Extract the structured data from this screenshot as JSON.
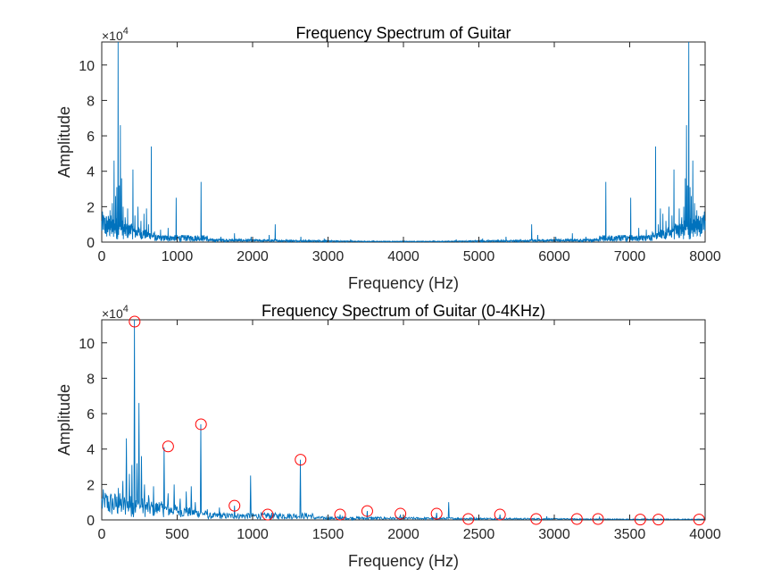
{
  "chart_data": [
    {
      "type": "line",
      "title": "Frequency Spectrum of Guitar",
      "xlabel": "Frequency (Hz)",
      "ylabel": "Amplitude",
      "y_exponent_base": "×10",
      "y_exponent_power": "4",
      "xlim": [
        0,
        8000
      ],
      "ylim": [
        0,
        11.3
      ],
      "y_multiplier": 10000,
      "xticks": [
        "0",
        "1000",
        "2000",
        "3000",
        "4000",
        "5000",
        "6000",
        "7000",
        "8000"
      ],
      "yticks": [
        "0",
        "2",
        "4",
        "6",
        "8",
        "10"
      ],
      "series_color": "#0072BD",
      "peaks": [
        {
          "x": 20,
          "y": 0.7
        },
        {
          "x": 45,
          "y": 0.5
        },
        {
          "x": 70,
          "y": 0.6
        },
        {
          "x": 95,
          "y": 0.4
        },
        {
          "x": 110,
          "y": 1.8
        },
        {
          "x": 125,
          "y": 0.8
        },
        {
          "x": 140,
          "y": 2.2
        },
        {
          "x": 165,
          "y": 4.6
        },
        {
          "x": 185,
          "y": 2.6
        },
        {
          "x": 200,
          "y": 3.1
        },
        {
          "x": 218,
          "y": 11.3
        },
        {
          "x": 232,
          "y": 3.2
        },
        {
          "x": 246,
          "y": 6.6
        },
        {
          "x": 262,
          "y": 3.6
        },
        {
          "x": 285,
          "y": 2.0
        },
        {
          "x": 310,
          "y": 1.4
        },
        {
          "x": 345,
          "y": 1.9
        },
        {
          "x": 380,
          "y": 1.0
        },
        {
          "x": 412,
          "y": 4.1
        },
        {
          "x": 440,
          "y": 1.5
        },
        {
          "x": 480,
          "y": 2.0
        },
        {
          "x": 520,
          "y": 1.2
        },
        {
          "x": 560,
          "y": 1.6
        },
        {
          "x": 595,
          "y": 1.9
        },
        {
          "x": 620,
          "y": 1.0
        },
        {
          "x": 658,
          "y": 5.4
        },
        {
          "x": 700,
          "y": 0.6
        },
        {
          "x": 780,
          "y": 0.7
        },
        {
          "x": 880,
          "y": 0.8
        },
        {
          "x": 987,
          "y": 2.5
        },
        {
          "x": 1100,
          "y": 0.4
        },
        {
          "x": 1200,
          "y": 0.3
        },
        {
          "x": 1318,
          "y": 3.4
        },
        {
          "x": 1400,
          "y": 0.3
        },
        {
          "x": 1580,
          "y": 0.3
        },
        {
          "x": 1760,
          "y": 0.5
        },
        {
          "x": 1980,
          "y": 0.3
        },
        {
          "x": 2220,
          "y": 0.4
        },
        {
          "x": 2300,
          "y": 1.0
        },
        {
          "x": 2640,
          "y": 0.3
        },
        {
          "x": 2950,
          "y": 0.2
        },
        {
          "x": 3300,
          "y": 0.15
        },
        {
          "x": 3600,
          "y": 0.1
        }
      ]
    },
    {
      "type": "line",
      "title": "Frequency Spectrum of Guitar (0-4KHz)",
      "xlabel": "Frequency (Hz)",
      "ylabel": "Amplitude",
      "y_exponent_base": "×10",
      "y_exponent_power": "4",
      "xlim": [
        0,
        4000
      ],
      "ylim": [
        0,
        11.3
      ],
      "y_multiplier": 10000,
      "xticks": [
        "0",
        "500",
        "1000",
        "1500",
        "2000",
        "2500",
        "3000",
        "3500",
        "4000"
      ],
      "yticks": [
        "0",
        "2",
        "4",
        "6",
        "8",
        "10"
      ],
      "series_color": "#0072BD",
      "marker_color": "#FF0000",
      "marked_peaks": [
        {
          "x": 218,
          "y": 11.2
        },
        {
          "x": 440,
          "y": 4.15
        },
        {
          "x": 658,
          "y": 5.4
        },
        {
          "x": 880,
          "y": 0.8
        },
        {
          "x": 1100,
          "y": 0.3
        },
        {
          "x": 1318,
          "y": 3.4
        },
        {
          "x": 1580,
          "y": 0.3
        },
        {
          "x": 1760,
          "y": 0.5
        },
        {
          "x": 1980,
          "y": 0.35
        },
        {
          "x": 2220,
          "y": 0.35
        },
        {
          "x": 2430,
          "y": 0.05
        },
        {
          "x": 2640,
          "y": 0.3
        },
        {
          "x": 2880,
          "y": 0.05
        },
        {
          "x": 3150,
          "y": 0.05
        },
        {
          "x": 3290,
          "y": 0.05
        },
        {
          "x": 3570,
          "y": 0.02
        },
        {
          "x": 3690,
          "y": 0.02
        },
        {
          "x": 3960,
          "y": 0.02
        }
      ]
    }
  ]
}
